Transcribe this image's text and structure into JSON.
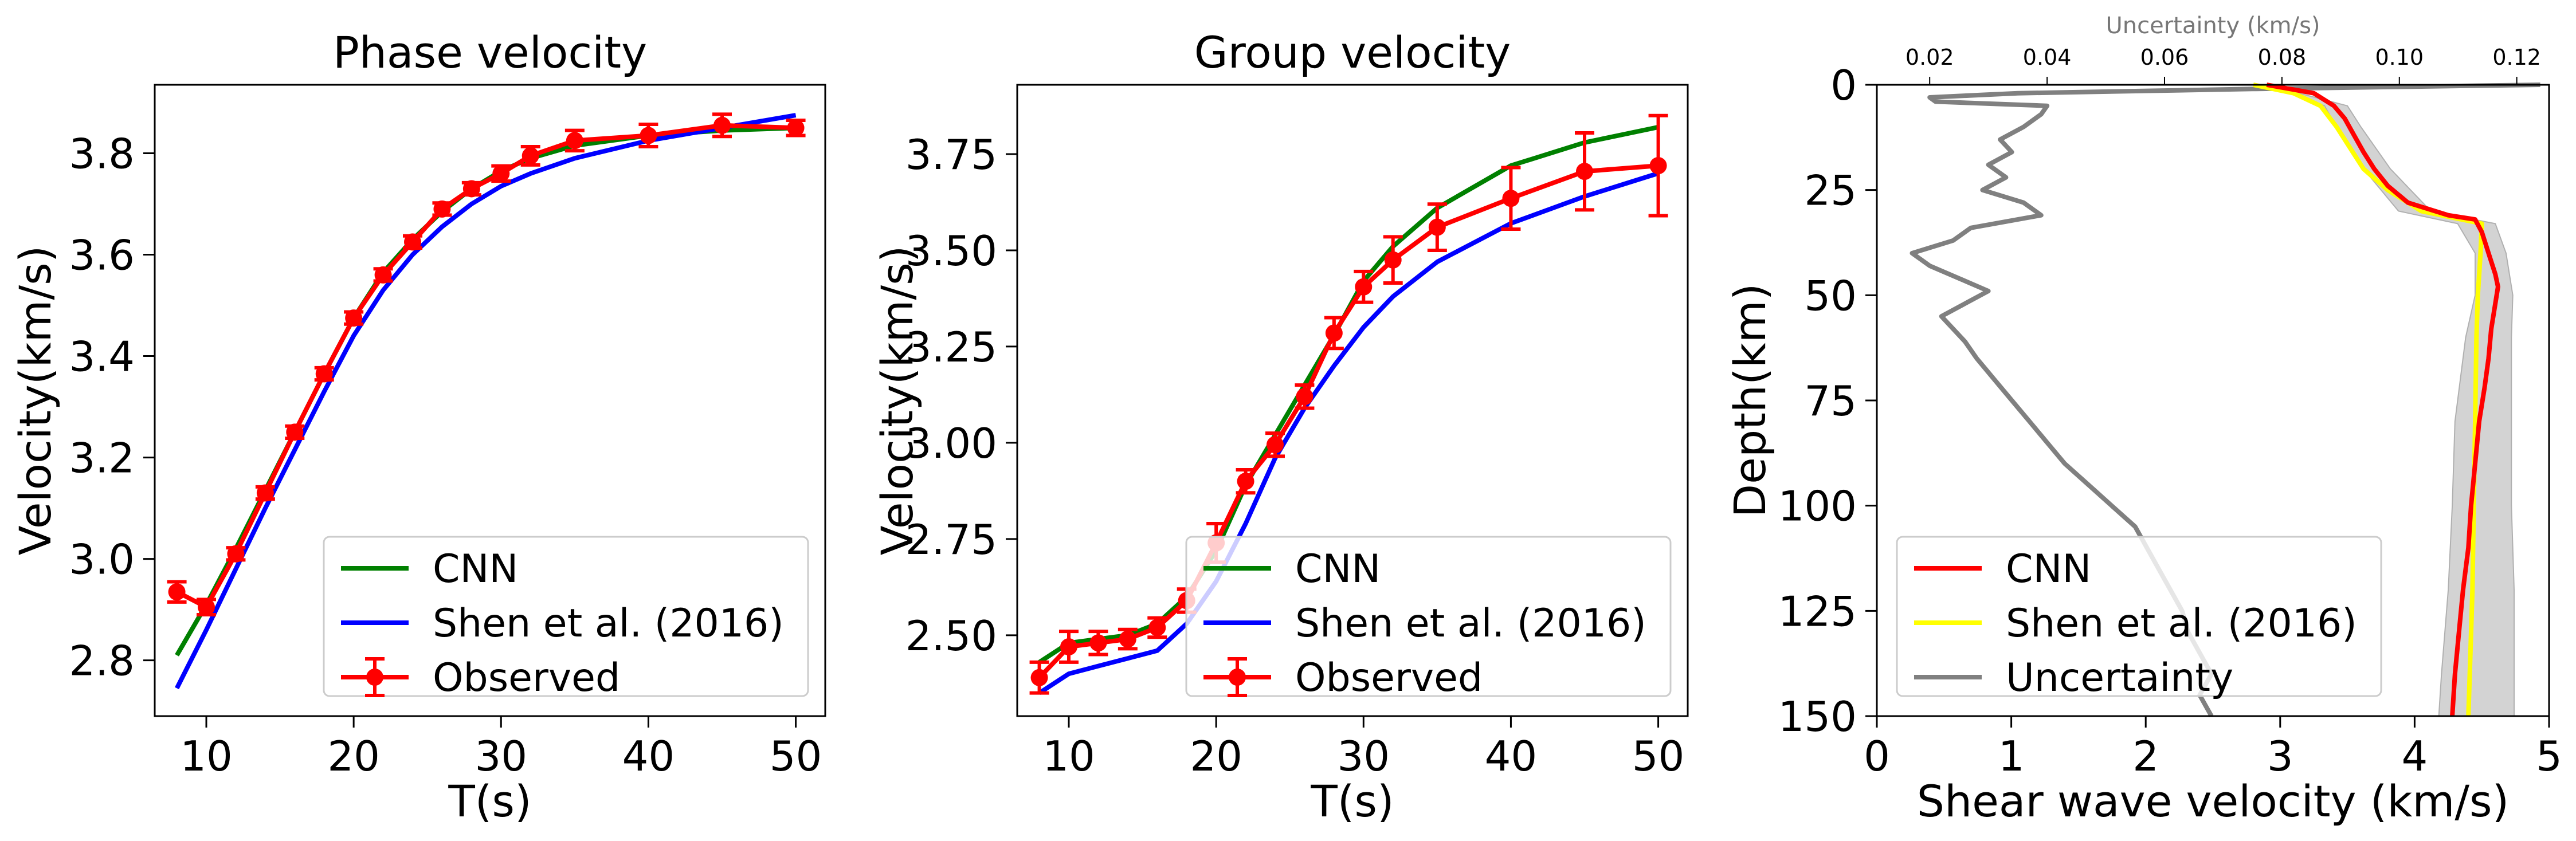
{
  "colors": {
    "cnn": "#008000",
    "shen": "#0000ff",
    "observed": "#ff0000",
    "cnn_profile": "#ff0000",
    "shen_profile": "#ffff00",
    "uncertainty": "#808080",
    "band": "#d3d3d3"
  },
  "chart_data": [
    {
      "type": "line",
      "title": "Phase velocity",
      "xlabel": "T(s)",
      "ylabel": "Velocity(km/s)",
      "xlim": [
        6.5,
        52
      ],
      "ylim": [
        2.69,
        3.935
      ],
      "xticks": [
        "10",
        "20",
        "30",
        "40",
        "50"
      ],
      "yticks": [
        "2.8",
        "3.0",
        "3.2",
        "3.4",
        "3.6",
        "3.8"
      ],
      "legend_position": "lower-right",
      "series": [
        {
          "name": "CNN",
          "x": [
            8,
            10,
            12,
            14,
            16,
            18,
            20,
            22,
            24,
            26,
            28,
            30,
            32,
            35,
            40,
            45,
            50
          ],
          "y": [
            2.81,
            2.91,
            3.02,
            3.135,
            3.25,
            3.365,
            3.475,
            3.565,
            3.63,
            3.685,
            3.73,
            3.765,
            3.79,
            3.815,
            3.835,
            3.845,
            3.85
          ]
        },
        {
          "name": "Shen et al. (2016)",
          "x": [
            8,
            10,
            12,
            14,
            16,
            18,
            20,
            22,
            24,
            26,
            28,
            30,
            32,
            35,
            40,
            45,
            50
          ],
          "y": [
            2.745,
            2.86,
            2.98,
            3.1,
            3.215,
            3.33,
            3.44,
            3.53,
            3.6,
            3.655,
            3.7,
            3.735,
            3.76,
            3.79,
            3.825,
            3.85,
            3.875
          ]
        },
        {
          "name": "Observed",
          "x": [
            8,
            10,
            12,
            14,
            16,
            18,
            20,
            22,
            24,
            26,
            28,
            30,
            32,
            35,
            40,
            45,
            50
          ],
          "y": [
            2.935,
            2.905,
            3.01,
            3.13,
            3.25,
            3.365,
            3.475,
            3.56,
            3.625,
            3.69,
            3.73,
            3.76,
            3.795,
            3.825,
            3.835,
            3.855,
            3.85
          ],
          "err": [
            0.02,
            0.015,
            0.012,
            0.012,
            0.012,
            0.012,
            0.012,
            0.012,
            0.012,
            0.012,
            0.012,
            0.015,
            0.018,
            0.02,
            0.022,
            0.022,
            0.015
          ]
        }
      ]
    },
    {
      "type": "line",
      "title": "Group velocity",
      "xlabel": "T(s)",
      "ylabel": "Velocity(km/s)",
      "xlim": [
        6.5,
        52
      ],
      "ylim": [
        2.29,
        3.93
      ],
      "xticks": [
        "10",
        "20",
        "30",
        "40",
        "50"
      ],
      "yticks": [
        "2.50",
        "2.75",
        "3.00",
        "3.25",
        "3.50",
        "3.75"
      ],
      "legend_position": "lower-right",
      "series": [
        {
          "name": "CNN",
          "x": [
            8,
            10,
            12,
            14,
            16,
            18,
            20,
            22,
            24,
            26,
            28,
            30,
            32,
            35,
            40,
            45,
            50
          ],
          "y": [
            2.43,
            2.48,
            2.49,
            2.5,
            2.53,
            2.6,
            2.72,
            2.89,
            3.02,
            3.15,
            3.28,
            3.42,
            3.51,
            3.61,
            3.72,
            3.78,
            3.82
          ]
        },
        {
          "name": "Shen et al. (2016)",
          "x": [
            8,
            10,
            12,
            14,
            16,
            18,
            20,
            22,
            24,
            26,
            28,
            30,
            32,
            35,
            40,
            45,
            50
          ],
          "y": [
            2.35,
            2.4,
            2.42,
            2.44,
            2.46,
            2.53,
            2.64,
            2.79,
            2.96,
            3.09,
            3.2,
            3.3,
            3.38,
            3.47,
            3.57,
            3.64,
            3.7
          ]
        },
        {
          "name": "Observed",
          "x": [
            8,
            10,
            12,
            14,
            16,
            18,
            20,
            22,
            24,
            26,
            28,
            30,
            32,
            35,
            40,
            45,
            50
          ],
          "y": [
            2.39,
            2.47,
            2.48,
            2.49,
            2.52,
            2.59,
            2.74,
            2.9,
            2.995,
            3.12,
            3.285,
            3.405,
            3.475,
            3.56,
            3.635,
            3.705,
            3.72
          ],
          "err": [
            0.04,
            0.04,
            0.03,
            0.025,
            0.025,
            0.03,
            0.05,
            0.03,
            0.03,
            0.03,
            0.04,
            0.04,
            0.06,
            0.06,
            0.08,
            0.1,
            0.13
          ]
        }
      ]
    },
    {
      "type": "line",
      "xlabel": "Shear wave velocity (km/s)",
      "ylabel": "Depth(km)",
      "secondary_xlabel": "Uncertainty (km/s)",
      "xlim": [
        0,
        5
      ],
      "ylim": [
        150,
        0
      ],
      "secondary_xlim": [
        0.011,
        0.1255
      ],
      "xticks": [
        "0",
        "1",
        "2",
        "3",
        "4",
        "5"
      ],
      "yticks": [
        "0",
        "25",
        "50",
        "75",
        "100",
        "125",
        "150"
      ],
      "secondary_xticks": [
        "0.02",
        "0.04",
        "0.06",
        "0.08",
        "0.10",
        "0.12"
      ],
      "legend_position": "lower-left",
      "series": [
        {
          "name": "CNN",
          "depth": [
            0,
            2,
            5,
            8,
            12,
            16,
            20,
            24,
            28,
            31,
            32,
            35,
            40,
            45,
            48,
            52,
            58,
            65,
            72,
            80,
            90,
            100,
            110,
            120,
            130,
            140,
            150
          ],
          "vs": [
            2.9,
            3.25,
            3.4,
            3.48,
            3.55,
            3.62,
            3.7,
            3.8,
            3.95,
            4.25,
            4.45,
            4.5,
            4.55,
            4.6,
            4.62,
            4.6,
            4.57,
            4.55,
            4.52,
            4.48,
            4.45,
            4.42,
            4.4,
            4.36,
            4.33,
            4.3,
            4.28
          ]
        },
        {
          "name": "Shen et al. (2016)",
          "depth": [
            0,
            2,
            5,
            10,
            15,
            20,
            25,
            30,
            32,
            33,
            40,
            50,
            60,
            80,
            100,
            120,
            140,
            150
          ],
          "vs": [
            2.8,
            3.1,
            3.3,
            3.42,
            3.52,
            3.62,
            3.8,
            4.05,
            4.35,
            4.5,
            4.49,
            4.47,
            4.46,
            4.45,
            4.44,
            4.43,
            4.41,
            4.4
          ]
        },
        {
          "name": "Uncertainty",
          "depth": [
            0,
            1,
            2,
            3,
            4,
            5,
            7,
            10,
            13,
            16,
            19,
            22,
            25,
            28,
            31,
            34,
            37,
            40,
            43,
            46,
            49,
            52,
            55,
            58,
            61,
            65,
            70,
            75,
            80,
            85,
            90,
            95,
            100,
            105,
            110,
            115,
            120,
            125,
            130,
            135,
            140,
            145,
            150
          ],
          "unc": [
            0.124,
            0.075,
            0.035,
            0.02,
            0.021,
            0.04,
            0.039,
            0.036,
            0.032,
            0.034,
            0.03,
            0.033,
            0.029,
            0.036,
            0.039,
            0.027,
            0.024,
            0.017,
            0.02,
            0.025,
            0.03,
            0.026,
            0.022,
            0.024,
            0.026,
            0.028,
            0.031,
            0.034,
            0.037,
            0.04,
            0.043,
            0.047,
            0.051,
            0.055,
            0.057,
            0.059,
            0.061,
            0.063,
            0.064,
            0.066,
            0.068,
            0.066,
            0.068
          ]
        }
      ],
      "band": {
        "depth": [
          0,
          5,
          10,
          20,
          30,
          33,
          40,
          50,
          60,
          80,
          100,
          120,
          140,
          150
        ],
        "low": [
          2.9,
          3.33,
          3.42,
          3.62,
          3.88,
          4.32,
          4.45,
          4.45,
          4.38,
          4.3,
          4.28,
          4.25,
          4.2,
          4.18
        ],
        "high": [
          2.9,
          3.5,
          3.6,
          3.82,
          4.12,
          4.6,
          4.68,
          4.73,
          4.72,
          4.72,
          4.72,
          4.74,
          4.74,
          4.74
        ]
      }
    }
  ]
}
